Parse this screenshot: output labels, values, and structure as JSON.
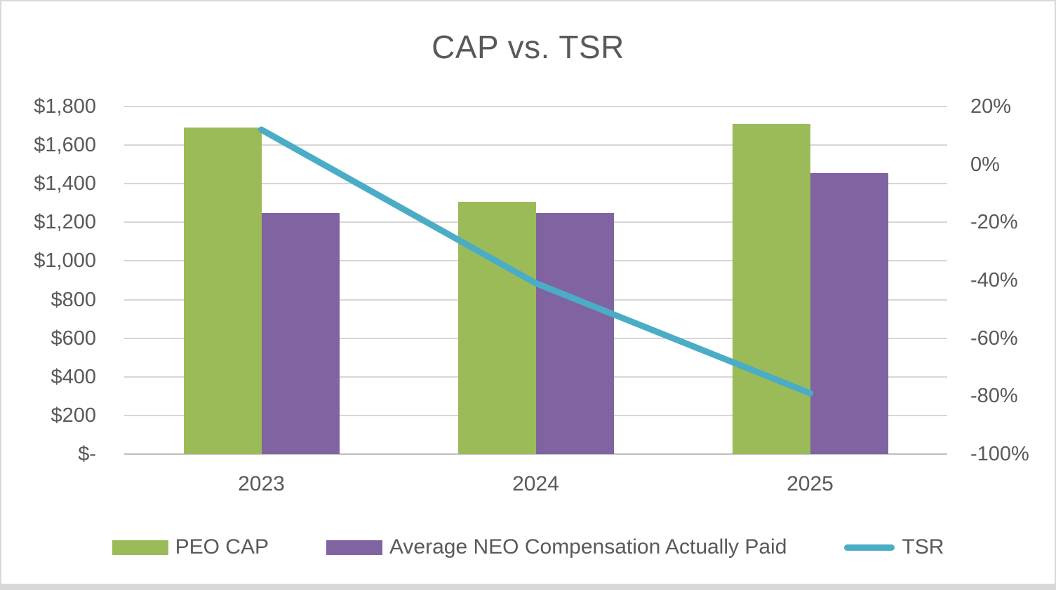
{
  "chart_data": {
    "type": "combo",
    "title": "CAP vs. TSR",
    "categories": [
      "2023",
      "2024",
      "2025"
    ],
    "series": [
      {
        "name": "PEO CAP",
        "type": "bar",
        "axis": "left",
        "color": "#9BBB59",
        "values": [
          1690,
          1305,
          1710
        ]
      },
      {
        "name": "Average NEO Compensation Actually Paid",
        "type": "bar",
        "axis": "left",
        "color": "#8064A2",
        "values": [
          1250,
          1250,
          1455
        ]
      },
      {
        "name": "TSR",
        "type": "line",
        "axis": "right",
        "color": "#4BACC6",
        "values": [
          12,
          -41,
          -79
        ]
      }
    ],
    "left_axis": {
      "min": 0,
      "max": 1800,
      "step": 200,
      "tick_labels": [
        "$-",
        "$200",
        "$400",
        "$600",
        "$800",
        "$1,000",
        "$1,200",
        "$1,400",
        "$1,600",
        "$1,800"
      ]
    },
    "right_axis": {
      "min": -100,
      "max": 20,
      "step": 20,
      "tick_labels": [
        "-100%",
        "-80%",
        "-60%",
        "-40%",
        "-20%",
        "0%",
        "20%"
      ]
    },
    "grid": true,
    "legend_position": "bottom"
  },
  "colors": {
    "text": "#595959",
    "gridline": "#D6D6D6",
    "axis_line": "#BFBFBF",
    "border": "#D9D9D9"
  }
}
